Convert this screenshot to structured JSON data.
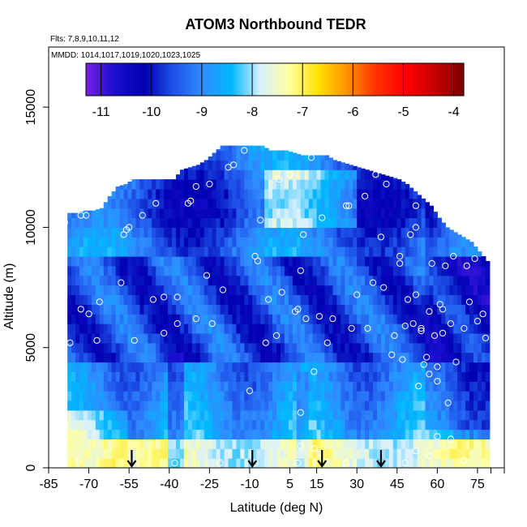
{
  "chart_data": {
    "type": "heatmap",
    "title": "ATOM3 Northbound TEDR",
    "subtitle_flights": "Flts: 7,8,9,10,11,12",
    "subtitle_dates": "MMDD: 1014,1017,1019,1020,1023,1025",
    "xlabel": "Latitude (deg N)",
    "ylabel": "Altitude (m)",
    "xlim": [
      -85,
      85
    ],
    "ylim": [
      0,
      17500
    ],
    "xticks": [
      -85,
      -70,
      -55,
      -40,
      -25,
      -10,
      5,
      15,
      30,
      45,
      60,
      75
    ],
    "xtick_labels": [
      "-85",
      "-70",
      "-55",
      "-40",
      "-25",
      "-10",
      "5",
      "15",
      "30",
      "45",
      "60",
      "75"
    ],
    "yticks": [
      0,
      5000,
      10000,
      15000
    ],
    "ytick_labels": [
      "0",
      "5000",
      "10000",
      "15000"
    ],
    "colorbar": {
      "range": [
        -11.3,
        -3.8
      ],
      "ticks": [
        -11,
        -10,
        -9,
        -8,
        -7,
        -6,
        -5,
        -4
      ],
      "tick_labels": [
        "-11",
        "-10",
        "-9",
        "-8",
        "-7",
        "-6",
        "-5",
        "-4"
      ],
      "colors": [
        "#7a1fe0",
        "#1a0fd0",
        "#0000b0",
        "#1e50e8",
        "#2f8cff",
        "#00b8ff",
        "#d8f0ff",
        "#ffffa0",
        "#ffe000",
        "#ff9000",
        "#ff3000",
        "#ff0000",
        "#c80000",
        "#7a0000"
      ]
    },
    "coverage_profile": {
      "lat": [
        -75,
        -72,
        -69,
        -66,
        -63,
        -60,
        -57,
        -54,
        -51,
        -48,
        -45,
        -42,
        -39,
        -36,
        -33,
        -30,
        -27,
        -24,
        -21,
        -18,
        -15,
        -12,
        -9,
        -6,
        -3,
        0,
        3,
        6,
        9,
        12,
        15,
        18,
        21,
        24,
        27,
        30,
        33,
        36,
        39,
        42,
        45,
        48,
        51,
        54,
        57,
        60,
        63,
        66,
        69,
        72,
        75,
        78
      ],
      "top_altitude": [
        10600,
        10700,
        10700,
        10800,
        11300,
        11700,
        11800,
        12000,
        12000,
        12000,
        12000,
        12000,
        12000,
        12400,
        12500,
        12600,
        12800,
        13100,
        13400,
        13400,
        13400,
        13400,
        13400,
        13400,
        13200,
        13200,
        13200,
        13100,
        13000,
        13000,
        13000,
        13000,
        12800,
        12700,
        12600,
        12500,
        12400,
        12300,
        12200,
        12100,
        12000,
        11800,
        11500,
        11200,
        10900,
        10400,
        10000,
        9800,
        9600,
        9400,
        9000,
        8600
      ]
    },
    "descent_arrows_lat": [
      -54,
      -9,
      17,
      39
    ],
    "observation_points": [
      {
        "lat": -79,
        "alt": 10200
      },
      {
        "lat": -80,
        "alt": 7800
      },
      {
        "lat": -73,
        "alt": 10500
      },
      {
        "lat": -71,
        "alt": 10500
      },
      {
        "lat": -70,
        "alt": 6400
      },
      {
        "lat": -73,
        "alt": 6600
      },
      {
        "lat": -77,
        "alt": 5200
      },
      {
        "lat": -67,
        "alt": 5300
      },
      {
        "lat": -66,
        "alt": 6900
      },
      {
        "lat": -64,
        "alt": 11800
      },
      {
        "lat": -58,
        "alt": 7700
      },
      {
        "lat": -57,
        "alt": 9700
      },
      {
        "lat": -56,
        "alt": 9900
      },
      {
        "lat": -55,
        "alt": 10000
      },
      {
        "lat": -53,
        "alt": 5300
      },
      {
        "lat": -50,
        "alt": 10500
      },
      {
        "lat": -46,
        "alt": 7000
      },
      {
        "lat": -45,
        "alt": 11000
      },
      {
        "lat": -42,
        "alt": 7100
      },
      {
        "lat": -42,
        "alt": 5600
      },
      {
        "lat": -37,
        "alt": 6000
      },
      {
        "lat": -37,
        "alt": 7100
      },
      {
        "lat": -33,
        "alt": 11000
      },
      {
        "lat": -32,
        "alt": 11100
      },
      {
        "lat": -30,
        "alt": 11700
      },
      {
        "lat": -30,
        "alt": 6200
      },
      {
        "lat": -26,
        "alt": 8000
      },
      {
        "lat": -25,
        "alt": 11800
      },
      {
        "lat": -24,
        "alt": 6000
      },
      {
        "lat": -20,
        "alt": 7400
      },
      {
        "lat": -18,
        "alt": 12500
      },
      {
        "lat": -16,
        "alt": 12600
      },
      {
        "lat": -12,
        "alt": 13200
      },
      {
        "lat": -10,
        "alt": 3200
      },
      {
        "lat": -8,
        "alt": 8800
      },
      {
        "lat": -7,
        "alt": 8600
      },
      {
        "lat": -6,
        "alt": 10300
      },
      {
        "lat": -4,
        "alt": 5200
      },
      {
        "lat": -3,
        "alt": 7000
      },
      {
        "lat": 0,
        "alt": 5500
      },
      {
        "lat": 1,
        "alt": 12000
      },
      {
        "lat": 2,
        "alt": 7300
      },
      {
        "lat": 5,
        "alt": 12200
      },
      {
        "lat": 7,
        "alt": 6500
      },
      {
        "lat": 8,
        "alt": 6600
      },
      {
        "lat": 9,
        "alt": 8200
      },
      {
        "lat": 9,
        "alt": 2300
      },
      {
        "lat": 10,
        "alt": 9700
      },
      {
        "lat": 11,
        "alt": 6200
      },
      {
        "lat": 13,
        "alt": 12900
      },
      {
        "lat": 14,
        "alt": 4000
      },
      {
        "lat": 16,
        "alt": 6300
      },
      {
        "lat": 17,
        "alt": 10400
      },
      {
        "lat": 19,
        "alt": 5200
      },
      {
        "lat": 21,
        "alt": 6200
      },
      {
        "lat": 26,
        "alt": 10900
      },
      {
        "lat": 27,
        "alt": 10900
      },
      {
        "lat": 28,
        "alt": 5800
      },
      {
        "lat": 30,
        "alt": 7200
      },
      {
        "lat": 33,
        "alt": 11300
      },
      {
        "lat": 34,
        "alt": 5800
      },
      {
        "lat": 36,
        "alt": 7700
      },
      {
        "lat": 37,
        "alt": 12200
      },
      {
        "lat": 39,
        "alt": 9600
      },
      {
        "lat": 40,
        "alt": 7500
      },
      {
        "lat": 41,
        "alt": 11800
      },
      {
        "lat": 43,
        "alt": 4700
      },
      {
        "lat": 44,
        "alt": 5500
      },
      {
        "lat": 46,
        "alt": 8800
      },
      {
        "lat": 46,
        "alt": 8500
      },
      {
        "lat": 47,
        "alt": 4500
      },
      {
        "lat": 48,
        "alt": 5900
      },
      {
        "lat": 49,
        "alt": 7000
      },
      {
        "lat": 50,
        "alt": 9700
      },
      {
        "lat": 51,
        "alt": 6000
      },
      {
        "lat": 52,
        "alt": 10000
      },
      {
        "lat": 52,
        "alt": 10900
      },
      {
        "lat": 52,
        "alt": 7200
      },
      {
        "lat": 53,
        "alt": 12100
      },
      {
        "lat": 53,
        "alt": 3400
      },
      {
        "lat": 54,
        "alt": 5800
      },
      {
        "lat": 54,
        "alt": 5700
      },
      {
        "lat": 55,
        "alt": 4300
      },
      {
        "lat": 56,
        "alt": 4600
      },
      {
        "lat": 57,
        "alt": 6500
      },
      {
        "lat": 57,
        "alt": 3900
      },
      {
        "lat": 58,
        "alt": 8500
      },
      {
        "lat": 59,
        "alt": 5500
      },
      {
        "lat": 60,
        "alt": 4200
      },
      {
        "lat": 60,
        "alt": 3600
      },
      {
        "lat": 61,
        "alt": 6800
      },
      {
        "lat": 62,
        "alt": 6600
      },
      {
        "lat": 62,
        "alt": 5600
      },
      {
        "lat": 63,
        "alt": 8400
      },
      {
        "lat": 64,
        "alt": 2700
      },
      {
        "lat": 65,
        "alt": 6000
      },
      {
        "lat": 66,
        "alt": 8800
      },
      {
        "lat": 67,
        "alt": 4400
      },
      {
        "lat": 70,
        "alt": 5800
      },
      {
        "lat": 71,
        "alt": 8400
      },
      {
        "lat": 72,
        "alt": 6900
      },
      {
        "lat": 74,
        "alt": 8700
      },
      {
        "lat": 75,
        "alt": 6100
      },
      {
        "lat": 77,
        "alt": 6400
      },
      {
        "lat": 78,
        "alt": 5400
      },
      {
        "lat": 60,
        "alt": 1300
      },
      {
        "lat": 65,
        "alt": 1200
      },
      {
        "lat": 9,
        "alt": 900
      },
      {
        "lat": 14,
        "alt": 800
      },
      {
        "lat": -38,
        "alt": 200
      },
      {
        "lat": -21,
        "alt": 200
      },
      {
        "lat": -8,
        "alt": 200
      },
      {
        "lat": 8,
        "alt": 200
      },
      {
        "lat": 26,
        "alt": 200
      },
      {
        "lat": 48,
        "alt": 200
      },
      {
        "lat": 57,
        "alt": 500
      },
      {
        "lat": 52,
        "alt": 700
      },
      {
        "lat": 70,
        "alt": 300
      },
      {
        "lat": -74,
        "alt": 300
      }
    ]
  }
}
